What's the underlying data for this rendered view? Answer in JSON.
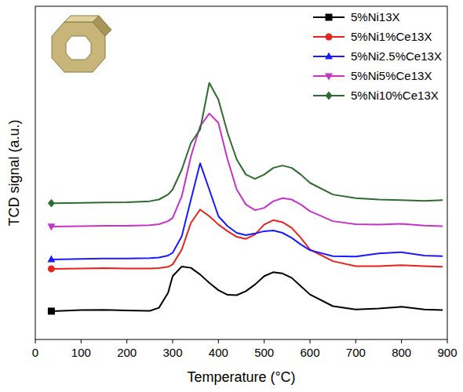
{
  "chart_data": {
    "type": "line",
    "x_label": "Temperature (°C)",
    "y_label": "TCD signal (a.u.)",
    "x": [
      35,
      100,
      150,
      200,
      250,
      270,
      290,
      300,
      320,
      340,
      360,
      380,
      400,
      420,
      440,
      460,
      480,
      500,
      520,
      540,
      560,
      580,
      600,
      650,
      700,
      750,
      800,
      850,
      890
    ],
    "xlim": [
      0,
      900
    ],
    "xticks": [
      0,
      100,
      200,
      300,
      400,
      500,
      600,
      700,
      800,
      900
    ],
    "ylim": [
      0,
      100
    ],
    "yticks": [],
    "tick_labels": "x",
    "grid": false,
    "legend": "upper right",
    "series": [
      {
        "name": "5%Ni13X",
        "color": "#000000",
        "marker": "square",
        "values": [
          8.5,
          8.8,
          8.9,
          8.7,
          8.6,
          9.5,
          14,
          19,
          21.9,
          21.5,
          19.5,
          17,
          14.8,
          13.4,
          13.3,
          14.5,
          16.5,
          19,
          20.2,
          19.8,
          18.5,
          16,
          13.5,
          10,
          9,
          9.3,
          9.8,
          9.0,
          8.8
        ]
      },
      {
        "name": "5%Ni1%Ce13X",
        "color": "#e8221c",
        "marker": "circle",
        "values": [
          21.2,
          21.3,
          21.4,
          21.3,
          21.3,
          21.4,
          21.8,
          22.5,
          27,
          35,
          39,
          37,
          34.5,
          32.5,
          30.8,
          30.2,
          31.5,
          34.5,
          35.8,
          35.2,
          33.5,
          30.5,
          27,
          23.5,
          22,
          22,
          22.3,
          22,
          21.8
        ]
      },
      {
        "name": "5%Ni2.5%Ce13X",
        "color": "#1a1aff",
        "marker": "triangle",
        "values": [
          24,
          24.2,
          24.3,
          24.3,
          24.4,
          24.6,
          25.2,
          26,
          31,
          42,
          52.9,
          45,
          37,
          34,
          32,
          31.3,
          31.8,
          32.5,
          32.7,
          32,
          30.5,
          28.5,
          26.8,
          25,
          24.9,
          25.8,
          26.2,
          25.2,
          25
        ]
      },
      {
        "name": "5%Ni5%Ce13X",
        "color": "#c832c8",
        "marker": "inverted_triangle",
        "values": [
          33.9,
          34,
          34.1,
          34.1,
          34.3,
          34.6,
          35.5,
          36.5,
          43,
          55,
          64,
          67.8,
          65,
          54,
          45,
          40.5,
          38.8,
          39.5,
          41.5,
          42.4,
          42,
          40.5,
          38.5,
          35.5,
          34.6,
          34.5,
          34.7,
          34.2,
          34
        ]
      },
      {
        "name": "5%Ni10%Ce13X",
        "color": "#2e6b2e",
        "marker": "diamond",
        "values": [
          40.9,
          41,
          41.1,
          41.2,
          41.5,
          42,
          43.5,
          45,
          51,
          59,
          63,
          77,
          72,
          62,
          54,
          49.5,
          48.2,
          49.5,
          51.5,
          52.2,
          51.5,
          49.5,
          47,
          43.5,
          42.4,
          42,
          41.8,
          41.6,
          41.8
        ]
      }
    ]
  }
}
